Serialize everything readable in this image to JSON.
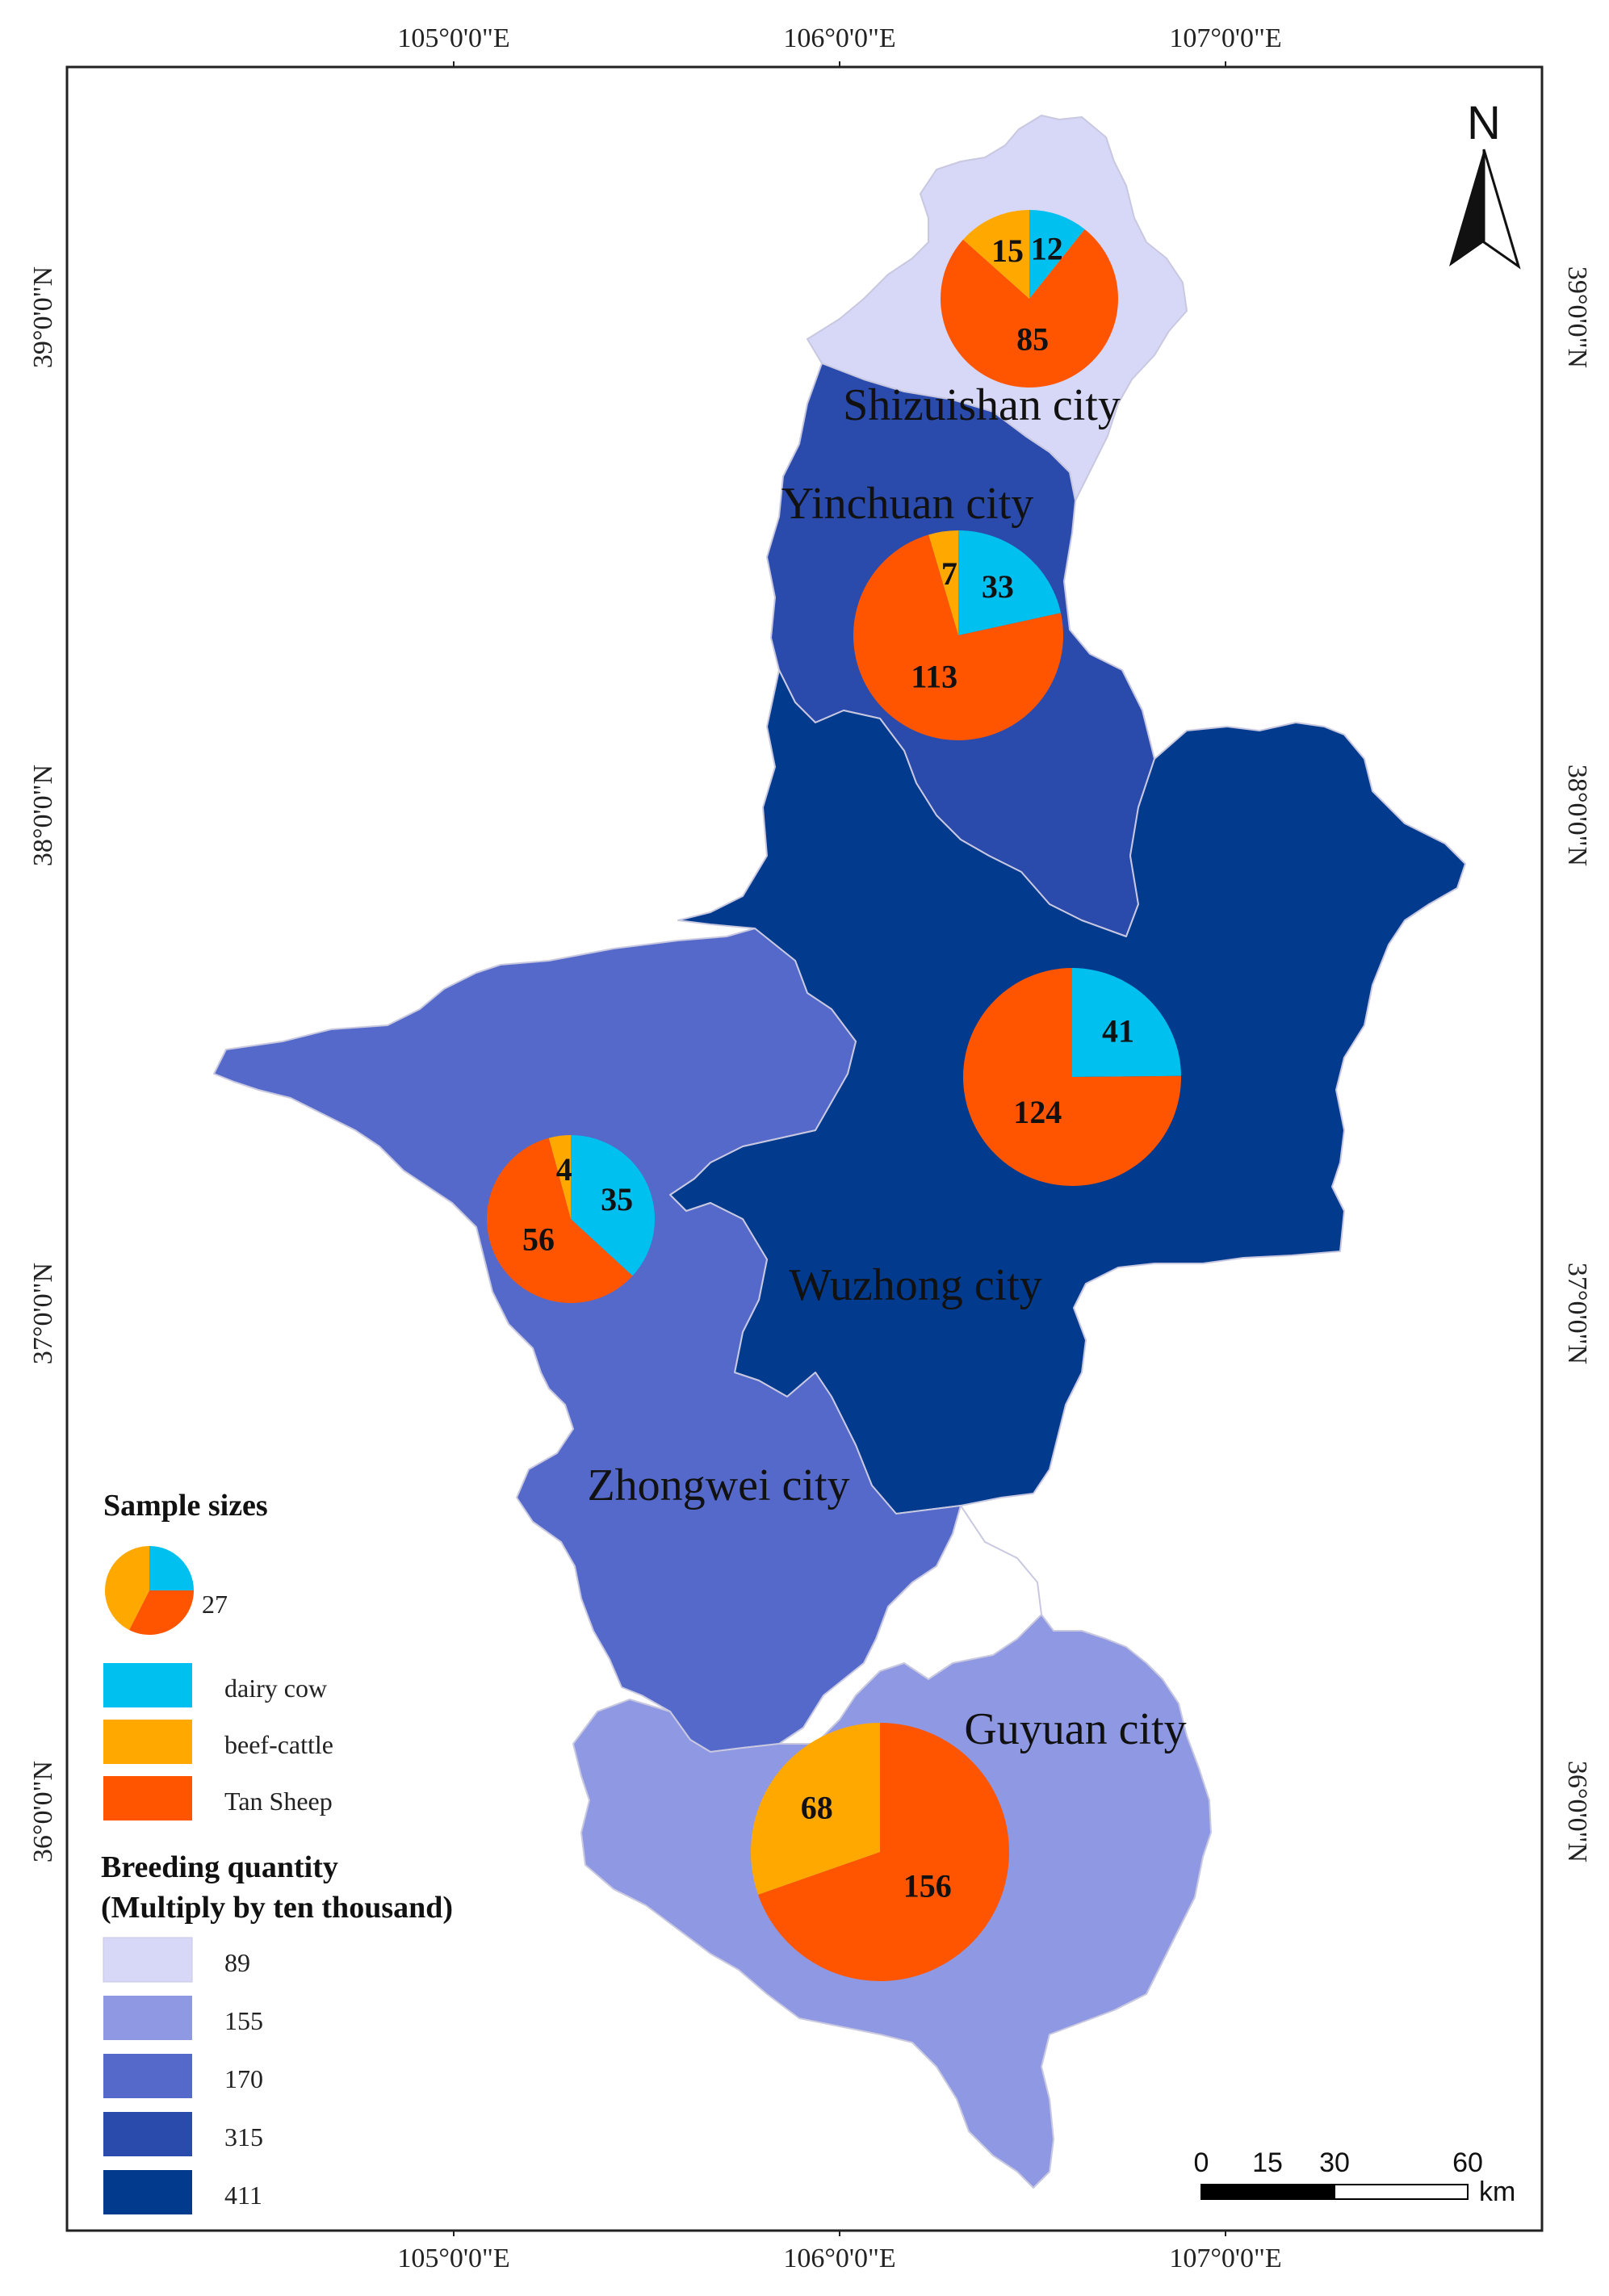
{
  "map": {
    "lon_labels": [
      "105°0'0\"E",
      "106°0'0\"E",
      "107°0'0\"E"
    ],
    "lat_labels": [
      "39°0'0\"N",
      "38°0'0\"N",
      "37°0'0\"N",
      "36°0'0\"N"
    ],
    "north_label": "N",
    "colors": {
      "q89": "#d7d7f7",
      "q155": "#8f98e2",
      "q170": "#5469c9",
      "q315": "#2a4aac",
      "q411": "#023a8e",
      "dairy": "#00c0f0",
      "beef": "#ffa800",
      "sheep": "#ff5500"
    },
    "regions": [
      {
        "key": "shizuishan",
        "name": "Shizuishan city",
        "breeding_quantity": 89,
        "pie": {
          "dairy_cow": 12,
          "beef_cattle": 15,
          "tan_sheep": 85
        }
      },
      {
        "key": "yinchuan",
        "name": "Yinchuan city",
        "breeding_quantity": 315,
        "pie": {
          "dairy_cow": 33,
          "beef_cattle": 7,
          "tan_sheep": 113
        }
      },
      {
        "key": "wuzhong",
        "name": "Wuzhong city",
        "breeding_quantity": 411,
        "pie": {
          "dairy_cow": 41,
          "beef_cattle": 0,
          "tan_sheep": 124
        }
      },
      {
        "key": "zhongwei",
        "name": "Zhongwei city",
        "breeding_quantity": 170,
        "pie": {
          "dairy_cow": 35,
          "beef_cattle": 4,
          "tan_sheep": 56
        }
      },
      {
        "key": "guyuan",
        "name": "Guyuan city",
        "breeding_quantity": 155,
        "pie": {
          "dairy_cow": 0,
          "beef_cattle": 68,
          "tan_sheep": 156
        }
      }
    ]
  },
  "legend": {
    "sample_title": "Sample sizes",
    "sample_value": "27",
    "species": [
      {
        "label": "dairy cow",
        "color": "#00c0f0"
      },
      {
        "label": "beef-cattle",
        "color": "#ffa800"
      },
      {
        "label": "Tan Sheep",
        "color": "#ff5500"
      }
    ],
    "breeding_title_line1": "Breeding quantity",
    "breeding_title_line2": "(Multiply by ten thousand)",
    "classes": [
      {
        "label": "89",
        "color": "#d7d7f7"
      },
      {
        "label": "155",
        "color": "#8f98e2"
      },
      {
        "label": "170",
        "color": "#5469c9"
      },
      {
        "label": "315",
        "color": "#2a4aac"
      },
      {
        "label": "411",
        "color": "#023a8e"
      }
    ]
  },
  "scale_bar": {
    "ticks": [
      "0",
      "15",
      "30",
      "60"
    ],
    "unit": "km"
  }
}
